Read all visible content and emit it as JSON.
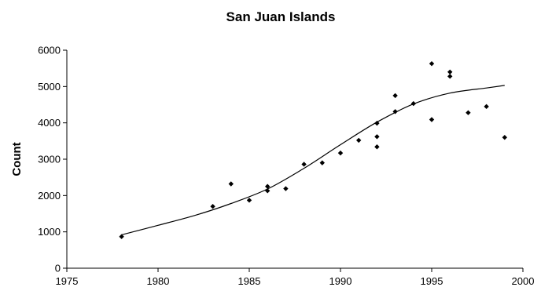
{
  "chart_data": {
    "type": "scatter",
    "title": "San Juan Islands",
    "xlabel": "",
    "ylabel": "Count",
    "xlim": [
      1975,
      2000
    ],
    "ylim": [
      0,
      6000
    ],
    "xticks": [
      1975,
      1980,
      1985,
      1990,
      1995,
      2000
    ],
    "yticks": [
      0,
      1000,
      2000,
      3000,
      4000,
      5000,
      6000
    ],
    "grid": false,
    "legend": "none",
    "points": [
      {
        "x": 1978,
        "y": 870
      },
      {
        "x": 1983,
        "y": 1700
      },
      {
        "x": 1984,
        "y": 2320
      },
      {
        "x": 1985,
        "y": 1870
      },
      {
        "x": 1986,
        "y": 2250
      },
      {
        "x": 1986,
        "y": 2130
      },
      {
        "x": 1987,
        "y": 2190
      },
      {
        "x": 1988,
        "y": 2860
      },
      {
        "x": 1989,
        "y": 2900
      },
      {
        "x": 1990,
        "y": 3170
      },
      {
        "x": 1991,
        "y": 3520
      },
      {
        "x": 1992,
        "y": 3990
      },
      {
        "x": 1992,
        "y": 3620
      },
      {
        "x": 1992,
        "y": 3340
      },
      {
        "x": 1993,
        "y": 4750
      },
      {
        "x": 1993,
        "y": 4310
      },
      {
        "x": 1994,
        "y": 4530
      },
      {
        "x": 1995,
        "y": 5630
      },
      {
        "x": 1995,
        "y": 4090
      },
      {
        "x": 1996,
        "y": 5400
      },
      {
        "x": 1996,
        "y": 5280
      },
      {
        "x": 1997,
        "y": 4280
      },
      {
        "x": 1998,
        "y": 4450
      },
      {
        "x": 1999,
        "y": 3600
      }
    ],
    "trend": {
      "x": [
        1978,
        1980,
        1982,
        1984,
        1986,
        1988,
        1990,
        1992,
        1994,
        1996,
        1998,
        1999
      ],
      "y": [
        920,
        1180,
        1450,
        1780,
        2180,
        2750,
        3400,
        4020,
        4520,
        4820,
        4960,
        5030
      ]
    },
    "colors": {
      "marker": "#000000",
      "trend": "#000000",
      "axis": "#000000"
    }
  }
}
